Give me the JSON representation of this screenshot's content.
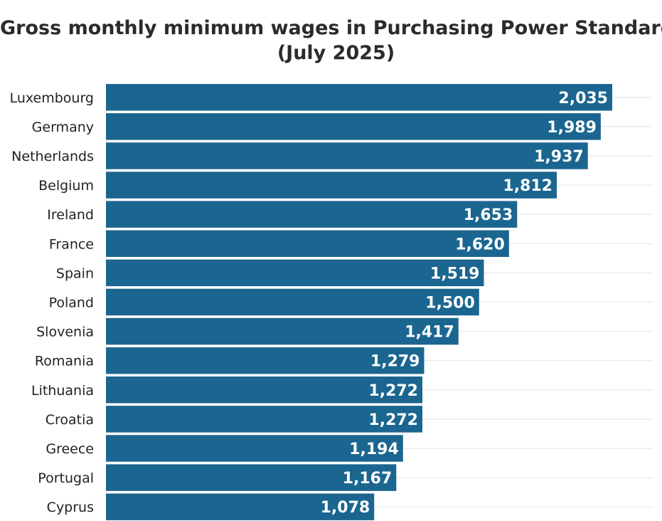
{
  "chart_data": {
    "type": "bar",
    "orientation": "horizontal",
    "title_lines": [
      "Gross monthly minimum wages in Purchasing Power Standard",
      "(July 2025)"
    ],
    "categories": [
      "Luxembourg",
      "Germany",
      "Netherlands",
      "Belgium",
      "Ireland",
      "France",
      "Spain",
      "Poland",
      "Slovenia",
      "Romania",
      "Lithuania",
      "Croatia",
      "Greece",
      "Portugal",
      "Cyprus"
    ],
    "values": [
      2035,
      1989,
      1937,
      1812,
      1653,
      1620,
      1519,
      1500,
      1417,
      1279,
      1272,
      1272,
      1194,
      1167,
      1078
    ],
    "value_labels": [
      "2,035",
      "1,989",
      "1,937",
      "1,812",
      "1,653",
      "1,620",
      "1,519",
      "1,500",
      "1,417",
      "1,279",
      "1,272",
      "1,272",
      "1,194",
      "1,167",
      "1,078"
    ],
    "xlim": [
      0,
      2035
    ],
    "grid": true,
    "bar_color": "#1b6690",
    "label_color": "#ffffff"
  }
}
